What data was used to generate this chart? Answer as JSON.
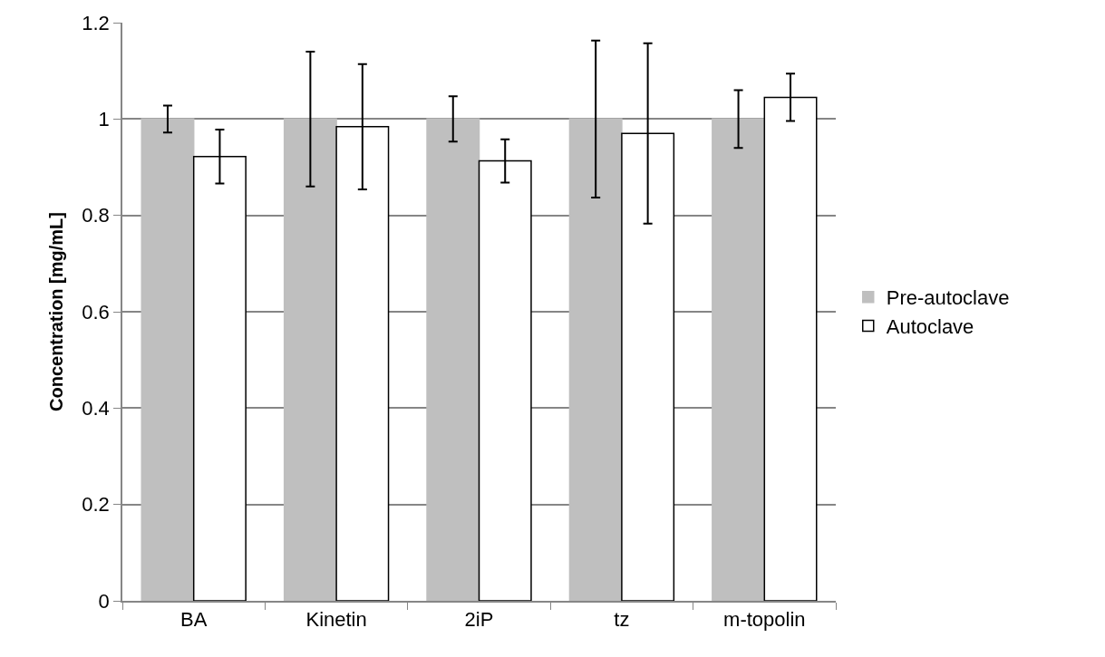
{
  "chart_data": {
    "type": "bar",
    "ylabel": "Concentration [mg/mL]",
    "categories": [
      "BA",
      "Kinetin",
      "2iP",
      "tz",
      "m-topolin"
    ],
    "series": [
      {
        "name": "Pre-autoclave",
        "color": "#bfbfbf",
        "values": [
          1.0,
          1.0,
          1.0,
          1.0,
          1.0
        ],
        "errors": [
          0.028,
          0.14,
          0.047,
          0.163,
          0.06
        ]
      },
      {
        "name": "Autoclave",
        "color": "#ffffff",
        "values": [
          0.922,
          0.984,
          0.913,
          0.97,
          1.045
        ],
        "errors": [
          0.056,
          0.13,
          0.045,
          0.187,
          0.049
        ]
      }
    ],
    "ylim": [
      0,
      1.2
    ],
    "yticks": [
      {
        "value": 0,
        "label": "0"
      },
      0.2,
      0.4,
      0.6,
      0.8,
      {
        "value": 1,
        "label": "1"
      },
      1.2
    ],
    "grid": "y",
    "legend": "right"
  }
}
